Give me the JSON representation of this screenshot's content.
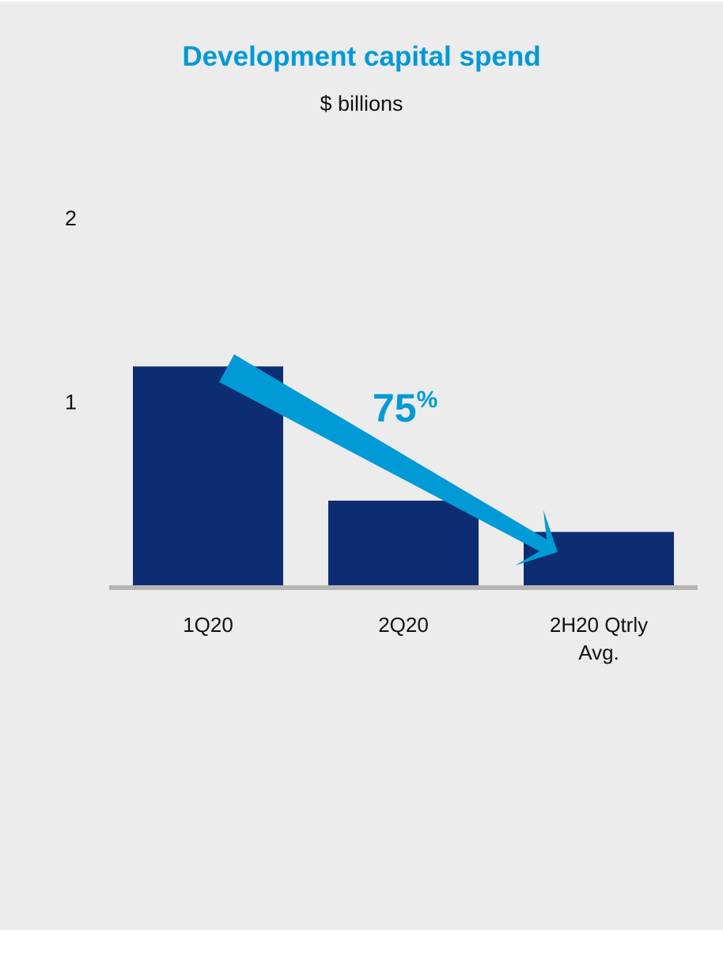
{
  "colors": {
    "background": "#ececec",
    "title": "#009ad6",
    "bar": "#0d2d72",
    "axis": "#b5b5b5",
    "arrow": "#009ad6"
  },
  "chart_data": {
    "type": "bar",
    "title": "Development capital spend",
    "subtitle": "$ billions",
    "categories": [
      [
        "1Q20"
      ],
      [
        "2Q20"
      ],
      [
        "2H20 Qtrly",
        "Avg."
      ]
    ],
    "values": [
      1.19,
      0.46,
      0.29
    ],
    "yticks": [
      "1",
      "2"
    ],
    "ylim": [
      0,
      2
    ],
    "grid": false,
    "legend": "none",
    "annotation": {
      "text": "75",
      "suffix": "%",
      "shape": "downward-arrow-from-first-to-last-bar"
    }
  }
}
